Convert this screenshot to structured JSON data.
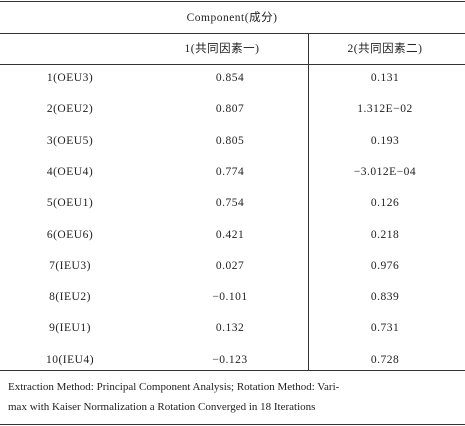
{
  "table": {
    "header": "Component(成分)",
    "columns": [
      "1(共同因素一)",
      "2(共同因素二)"
    ],
    "rows": [
      [
        "1(OEU3)",
        "0.854",
        "0.131"
      ],
      [
        "2(OEU2)",
        "0.807",
        "1.312E−02"
      ],
      [
        "3(OEU5)",
        "0.805",
        "0.193"
      ],
      [
        "4(OEU4)",
        "0.774",
        "−3.012E−04"
      ],
      [
        "5(OEU1)",
        "0.754",
        "0.126"
      ],
      [
        "6(OEU6)",
        "0.421",
        "0.218"
      ],
      [
        "7(IEU3)",
        "0.027",
        "0.976"
      ],
      [
        "8(IEU2)",
        "−0.101",
        "0.839"
      ],
      [
        "9(IEU1)",
        "0.132",
        "0.731"
      ],
      [
        "10(IEU4)",
        "−0.123",
        "0.728"
      ]
    ],
    "footnote": [
      "Extraction Method: Principal Component Analysis; Rotation Method: Vari-",
      "max with Kaiser Normalization a Rotation Converged in 18 Iterations"
    ]
  }
}
